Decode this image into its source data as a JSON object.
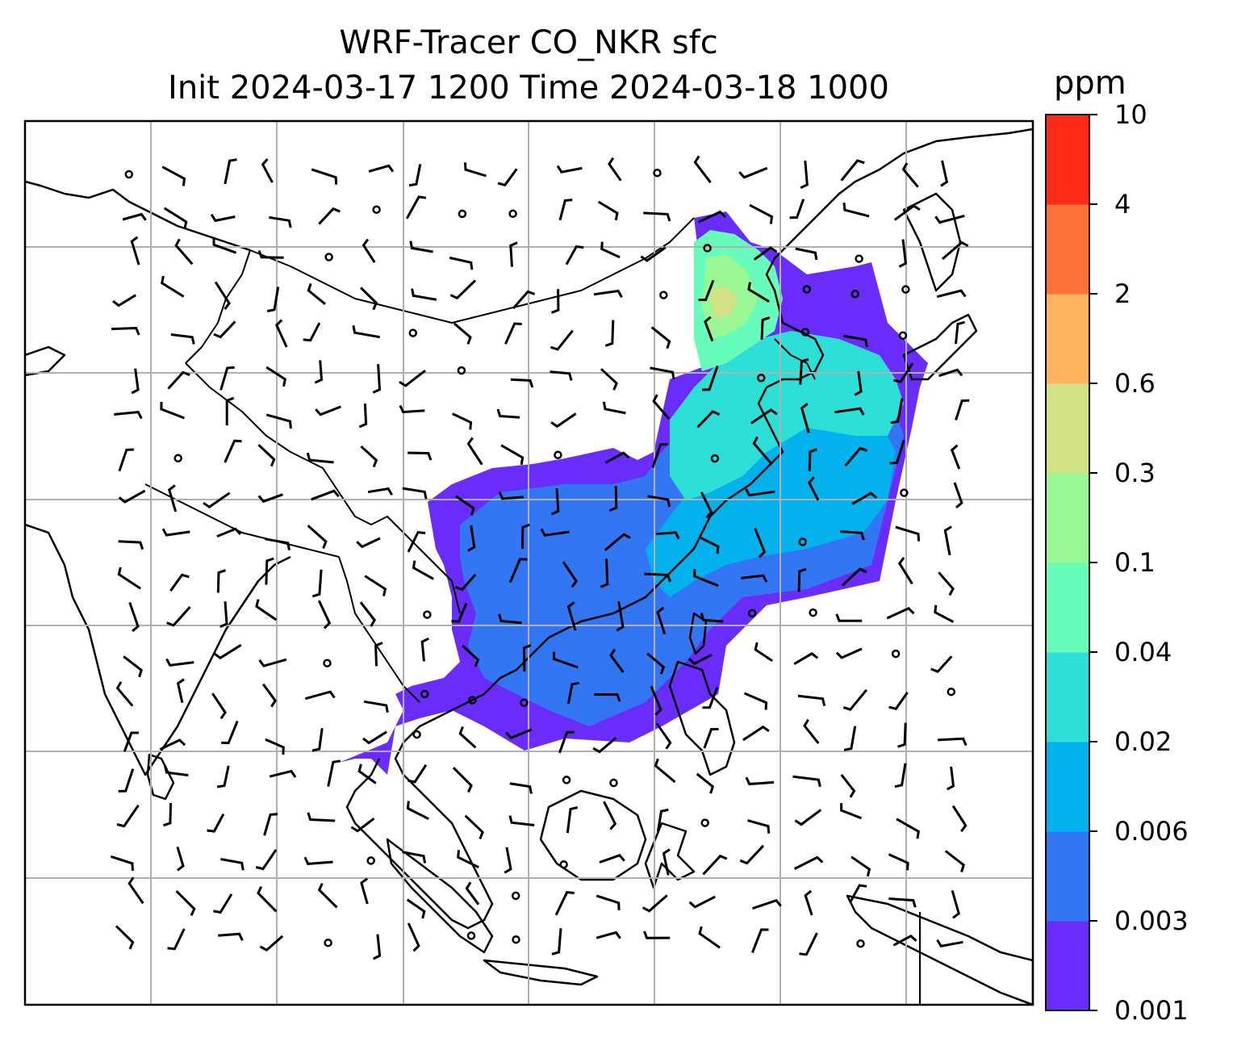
{
  "title": {
    "line1": "WRF-Tracer CO_NKR sfc",
    "line2": "Init 2024-03-17 1200 Time 2024-03-18 1000"
  },
  "colorbar": {
    "unit": "ppm",
    "levels": [
      "0.001",
      "0.003",
      "0.006",
      "0.02",
      "0.04",
      "0.1",
      "0.3",
      "0.6",
      "2",
      "4",
      "10"
    ],
    "colors": [
      "#6a2cfb",
      "#3276f4",
      "#03b2ed",
      "#2edfd8",
      "#67fcbb",
      "#99f894",
      "#d2e186",
      "#feb35f",
      "#fd7239",
      "#fd2b18"
    ]
  },
  "map": {
    "features": [
      "coastlines",
      "country-borders",
      "lat-lon-gridlines",
      "wind-barbs",
      "tracer-concentration-fill"
    ]
  }
}
